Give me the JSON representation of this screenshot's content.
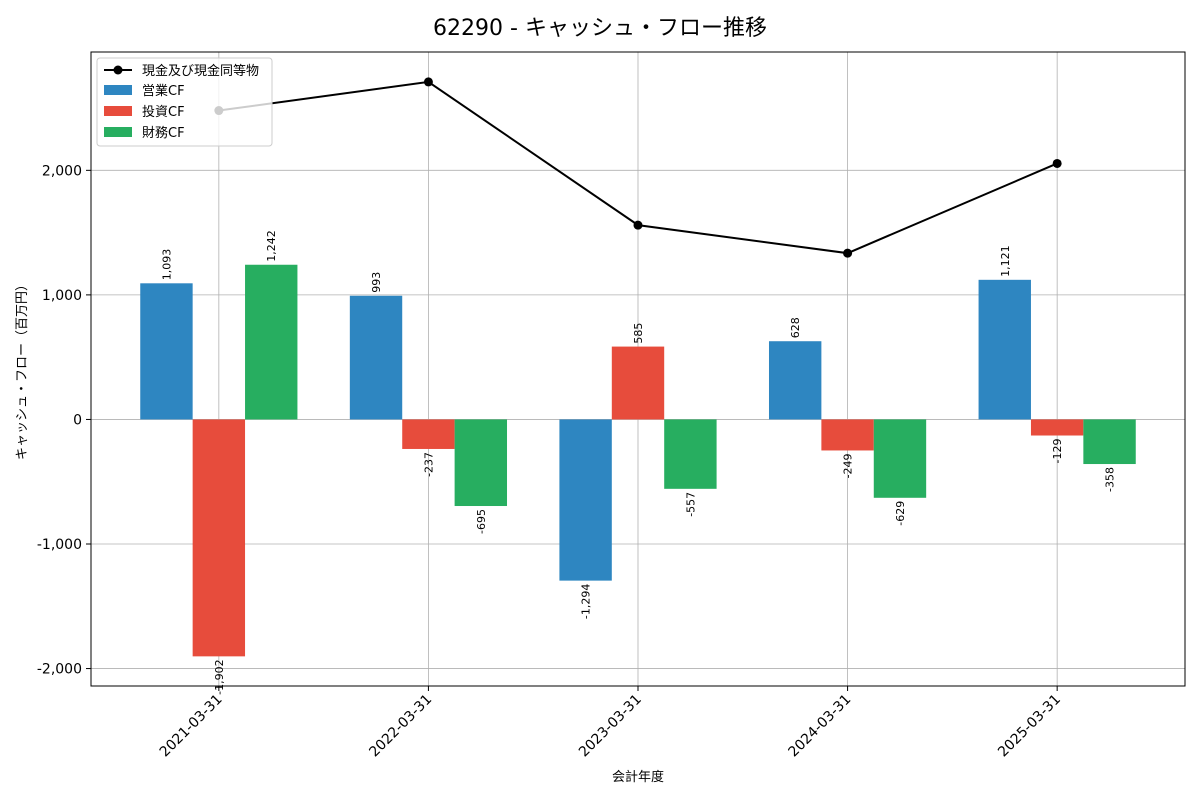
{
  "chart_data": {
    "type": "bar",
    "title": "62290 - キャッシュ・フロー推移",
    "xlabel": "会計年度",
    "ylabel": "キャッシュ・フロー（百万円）",
    "categories": [
      "2021-03-31",
      "2022-03-31",
      "2023-03-31",
      "2024-03-31",
      "2025-03-31"
    ],
    "ylim": [
      -2140,
      2950
    ],
    "yticks": [
      -2000,
      -1000,
      0,
      1000,
      2000
    ],
    "ytick_labels": [
      "-2,000",
      "-1,000",
      "0",
      "1,000",
      "2,000"
    ],
    "grid": true,
    "legend_position": "top-left",
    "series": [
      {
        "name": "営業CF",
        "kind": "bar",
        "color": "#2e86c1",
        "values": [
          1093,
          993,
          -1294,
          628,
          1121
        ],
        "labels": [
          "1,093",
          "993",
          "-1,294",
          "628",
          "1,121"
        ]
      },
      {
        "name": "投資CF",
        "kind": "bar",
        "color": "#e74c3c",
        "values": [
          -1902,
          -237,
          585,
          -249,
          -129
        ],
        "labels": [
          "-1,902",
          "-237",
          "585",
          "-249",
          "-129"
        ]
      },
      {
        "name": "財務CF",
        "kind": "bar",
        "color": "#27ae60",
        "values": [
          1242,
          -695,
          -557,
          -629,
          -358
        ],
        "labels": [
          "1,242",
          "-695",
          "-557",
          "-629",
          "-358"
        ]
      },
      {
        "name": "現金及び現金同等物",
        "kind": "line",
        "color": "#000000",
        "values": [
          2480,
          2710,
          1560,
          1335,
          2055
        ]
      }
    ]
  }
}
